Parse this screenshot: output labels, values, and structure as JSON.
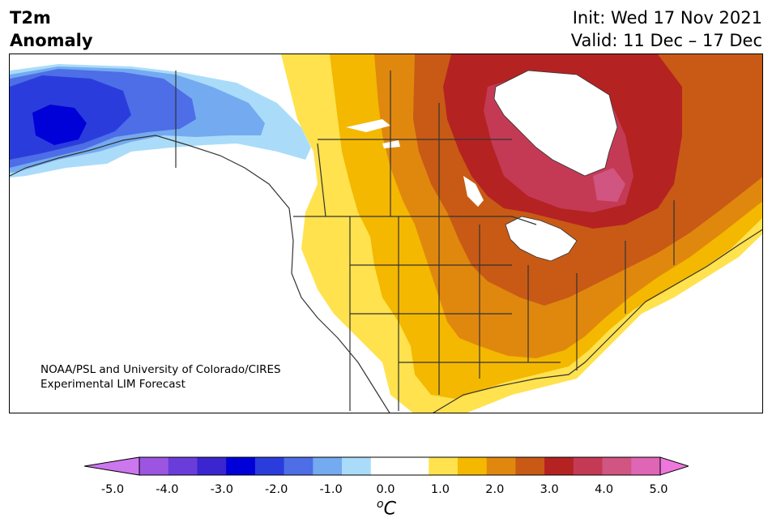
{
  "header": {
    "variable": "T2m",
    "variable_desc": "Anomaly",
    "init_line": "Init: Wed 17 Nov 2021",
    "valid_line": "Valid: 11 Dec – 17 Dec"
  },
  "credit": {
    "line1": "NOAA/PSL and University of Colorado/CIRES",
    "line2": "Experimental LIM Forecast"
  },
  "colorbar": {
    "ticks": [
      "-5.0",
      "-4.0",
      "-3.0",
      "-2.0",
      "-1.0",
      "0.0",
      "1.0",
      "2.0",
      "3.0",
      "4.0",
      "5.0"
    ],
    "unit_base": "C",
    "unit_super": "o",
    "colors": [
      "#9b55e0",
      "#6a3ddb",
      "#3a25d0",
      "#0000d8",
      "#2a3ddc",
      "#4d6ee6",
      "#74aaf0",
      "#aadcfa",
      "#ffffff",
      "#ffffff",
      "#ffe24d",
      "#f4b800",
      "#e0880e",
      "#c85a15",
      "#b52222",
      "#c43a55",
      "#d05580",
      "#de66b4"
    ],
    "under_color": "#cc77ee",
    "over_color": "#ee77dd"
  },
  "map": {
    "region": "North America",
    "anomaly_colors": {
      "cold_deep": "#0000d8",
      "cold_mid": "#2a3ddc",
      "cold_light": "#4d6ee6",
      "cold_pale": "#74aaf0",
      "cold_palest": "#aadcfa",
      "warm_1": "#ffe24d",
      "warm_2": "#f4b800",
      "warm_3": "#e0880e",
      "warm_4": "#c85a15",
      "warm_5": "#b52222",
      "warm_6": "#c43a55",
      "warm_7": "#d05580"
    }
  }
}
